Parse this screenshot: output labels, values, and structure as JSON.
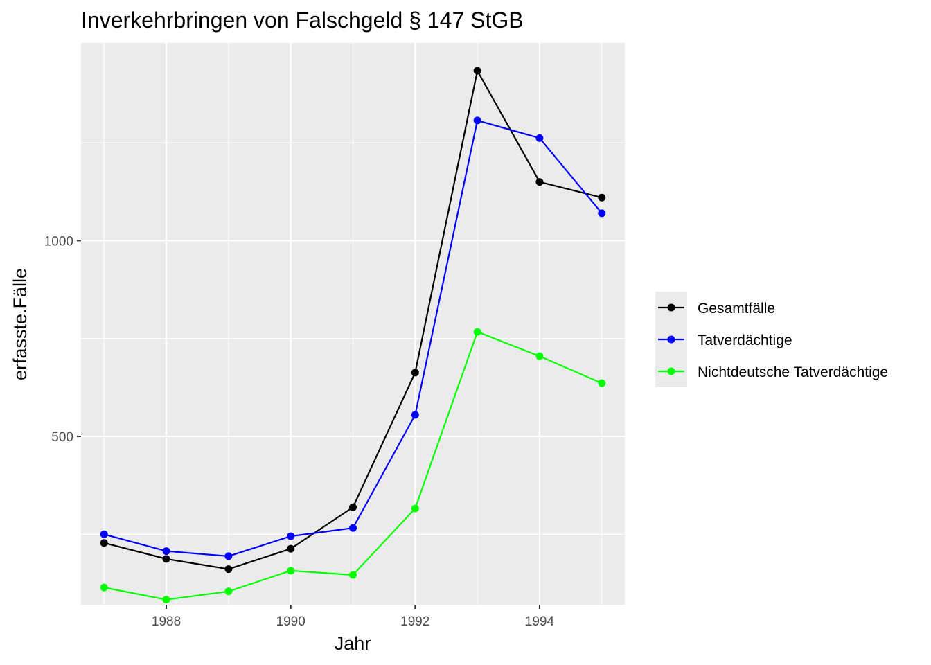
{
  "chart_data": {
    "type": "line",
    "title": "Inverkehrbringen von Falschgeld § 147 StGB",
    "xlabel": "Jahr",
    "ylabel": "erfasste.Fälle",
    "x": [
      1987,
      1988,
      1989,
      1990,
      1991,
      1992,
      1993,
      1994,
      1995
    ],
    "x_ticks": [
      "1988",
      "1990",
      "1992",
      "1994"
    ],
    "y_ticks": [
      "500",
      "1000"
    ],
    "xlim": [
      1986.63,
      1995.37
    ],
    "ylim": [
      70,
      1505
    ],
    "grid": true,
    "legend_position": "right",
    "series": [
      {
        "name": "Gesamtfälle",
        "color": "#000000",
        "values": [
          228,
          187,
          161,
          213,
          319,
          663,
          1434,
          1150,
          1110
        ]
      },
      {
        "name": "Tatverdächtige",
        "color": "#0000ff",
        "values": [
          250,
          207,
          194,
          245,
          266,
          555,
          1307,
          1262,
          1070
        ]
      },
      {
        "name": "Nichtdeutsche Tatverdächtige",
        "color": "#00ff00",
        "values": [
          114,
          83,
          104,
          157,
          146,
          316,
          767,
          705,
          636
        ]
      }
    ]
  }
}
